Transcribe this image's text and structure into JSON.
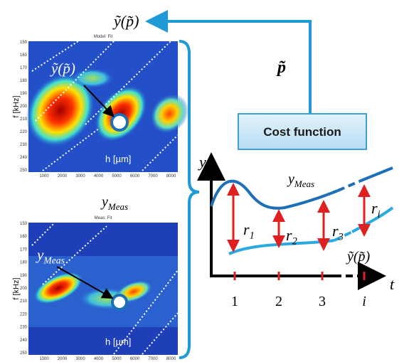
{
  "output_label": "ỹ(p̃)",
  "parameter_label": "p̃",
  "cost_function": "Cost function",
  "between_label": {
    "base": "y",
    "sub": "Meas"
  },
  "heatmaps": [
    {
      "title": "Model: Fit",
      "y_label": "f [kHz]",
      "x_label": "h [µm]",
      "marker_label": {
        "base": "ỹ(p̃)",
        "sub": ""
      },
      "yticks": [
        "150",
        "160",
        "170",
        "180",
        "190",
        "200",
        "210",
        "220",
        "230",
        "240",
        "250"
      ],
      "xticks": [
        "1000",
        "2000",
        "3000",
        "4000",
        "5000",
        "6000",
        "7000",
        "8000"
      ]
    },
    {
      "title": "Meas: Fit",
      "y_label": "f [kHz]",
      "x_label": "h [µm]",
      "marker_label": {
        "base": "y",
        "sub": "Meas"
      },
      "yticks": [
        "150",
        "160",
        "170",
        "180",
        "190",
        "200",
        "210",
        "220",
        "230",
        "240",
        "250"
      ],
      "xticks": [
        "1000",
        "2000",
        "3000",
        "4000",
        "5000",
        "6000",
        "7000",
        "8000"
      ]
    }
  ],
  "residual_plot": {
    "y_axis": "y",
    "x_axis": "t",
    "upper_curve": {
      "base": "y",
      "sub": "Meas"
    },
    "lower_curve": "ỹ(p̃)",
    "residuals": [
      {
        "base": "r",
        "sub": "1"
      },
      {
        "base": "r",
        "sub": "2"
      },
      {
        "base": "r",
        "sub": "3"
      },
      {
        "base": "r",
        "sub": "i"
      }
    ],
    "ticks": [
      "1",
      "2",
      "3",
      "i"
    ]
  }
}
